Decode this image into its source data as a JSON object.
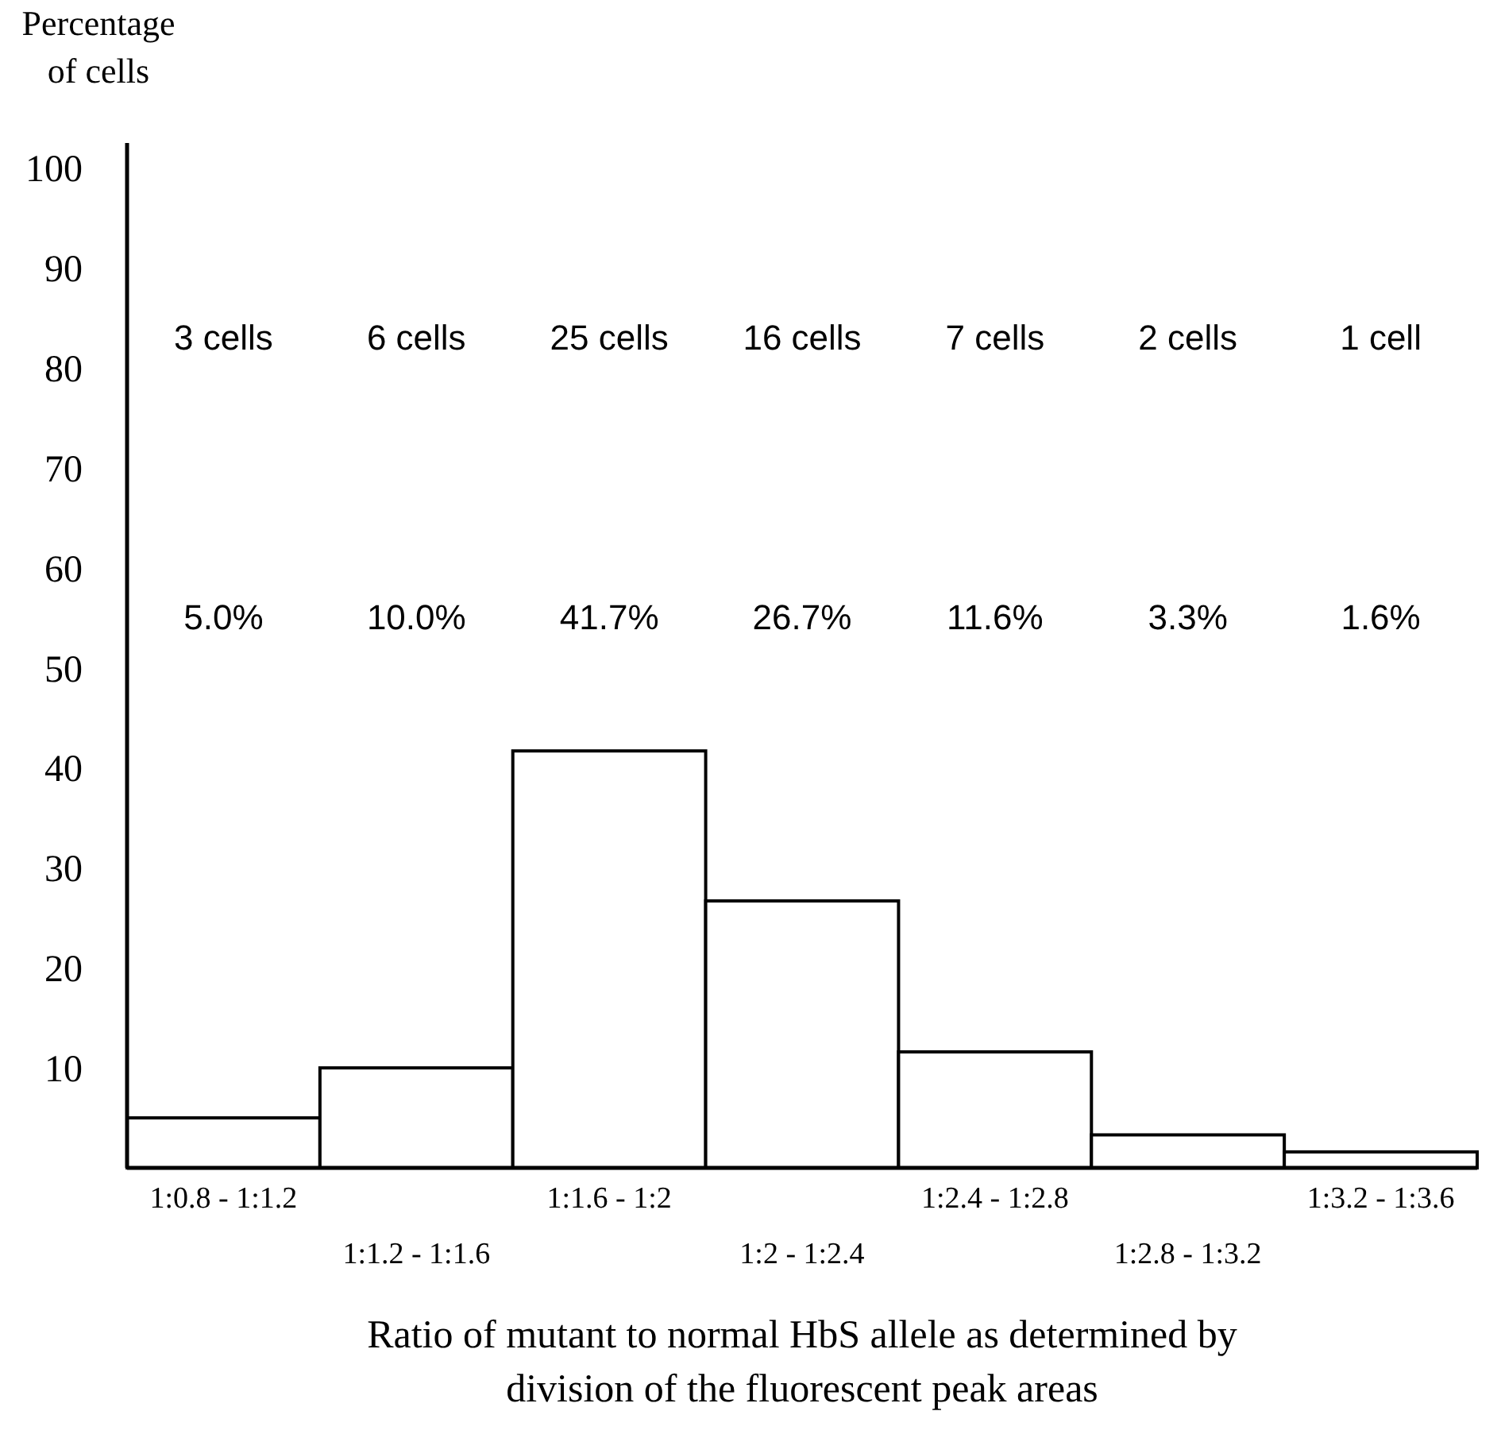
{
  "chart_data": {
    "type": "bar",
    "ylabel": "Percentage of cells",
    "xlabel": "Ratio of mutant to normal HbS allele as determined by division of the fluorescent peak areas",
    "categories": [
      "1:0.8 - 1:1.2",
      "1:1.2 - 1:1.6",
      "1:1.6 - 1:2",
      "1:2 - 1:2.4",
      "1:2.4 - 1:2.8",
      "1:2.8 - 1:3.2",
      "1:3.2 - 1:3.6"
    ],
    "values": [
      5.0,
      10.0,
      41.7,
      26.7,
      11.6,
      3.3,
      1.6
    ],
    "color": "#ffffff",
    "ylim": [
      0,
      102.5
    ],
    "yticks": [
      10,
      20,
      30,
      40,
      50,
      60,
      70,
      80,
      90,
      100
    ],
    "annotations": [
      "3 cells",
      "6 cells",
      "25 cells",
      "16 cells",
      "7 cells",
      "2 cells",
      "1 cell",
      "5.0%",
      "10.0%",
      "41.7%",
      "26.7%",
      "11.6%",
      "3.3%",
      "1.6%"
    ]
  }
}
